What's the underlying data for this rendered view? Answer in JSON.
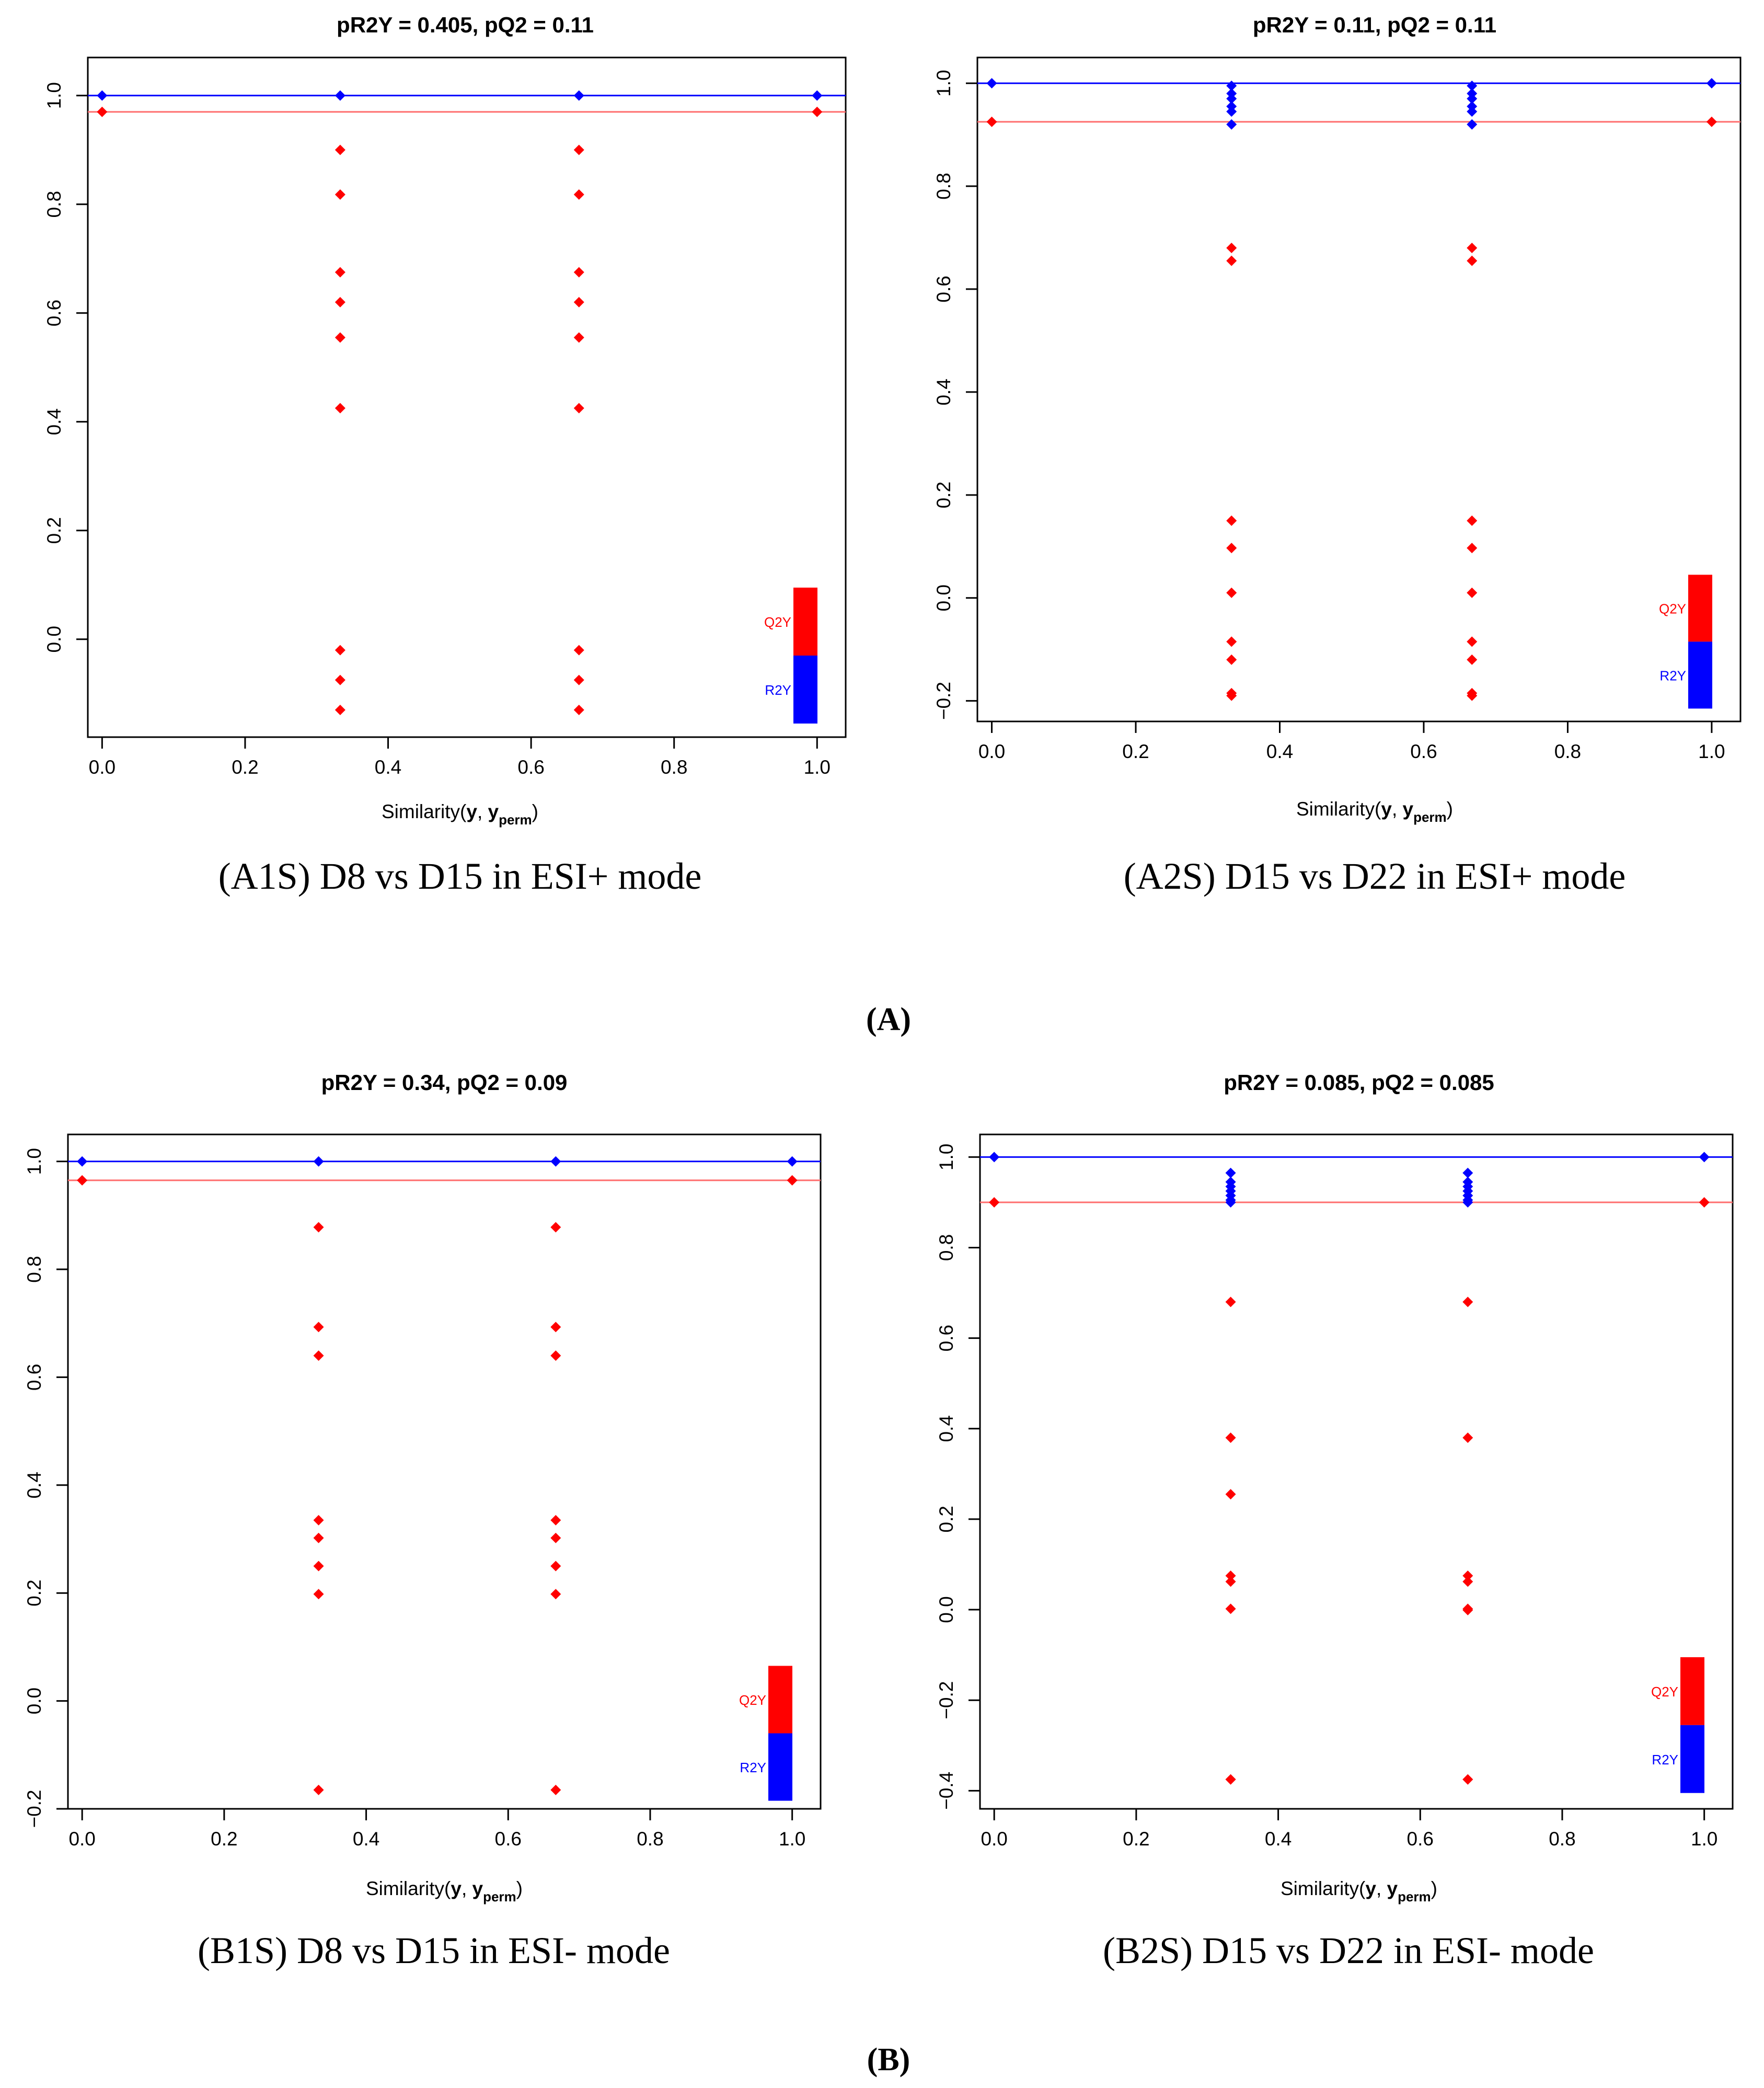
{
  "figure": {
    "panel_labels": [
      "(A)",
      "(B)"
    ]
  },
  "colors": {
    "r2y": "#0000ff",
    "q2y": "#ff0000",
    "q2y_line": "#ff6e6e"
  },
  "chart_data": [
    {
      "type": "scatter",
      "title": "pR2Y = 0.405, pQ2 = 0.11",
      "caption": "(A1S) D8 vs D15 in ESI+ mode",
      "xlabel_parts": [
        "Similarity(",
        "y",
        ", ",
        "y",
        "perm",
        ")"
      ],
      "xlim": [
        -0.02,
        1.04
      ],
      "ylim": [
        -0.18,
        1.07
      ],
      "xticks": [
        "0.0",
        "0.2",
        "0.4",
        "0.6",
        "0.8",
        "1.0"
      ],
      "yticks": [
        "0.0",
        "0.2",
        "0.4",
        "0.6",
        "0.8",
        "1.0"
      ],
      "legend": [
        "Q2Y",
        "R2Y"
      ],
      "legend_extent": [
        -0.155,
        -0.03,
        0.095
      ],
      "r2y_line": 1.0,
      "q2y_line": 0.97,
      "series": [
        {
          "name": "R2Y",
          "x": [
            0.0,
            0.333,
            0.667,
            1.0
          ],
          "y": [
            1.0,
            1.0,
            1.0,
            1.0
          ]
        },
        {
          "name": "Q2Y",
          "x": [
            0.0,
            0.333,
            0.333,
            0.333,
            0.333,
            0.333,
            0.333,
            0.333,
            0.333,
            0.333,
            0.667,
            0.667,
            0.667,
            0.667,
            0.667,
            0.667,
            0.667,
            0.667,
            0.667,
            1.0
          ],
          "y": [
            0.97,
            0.9,
            0.818,
            0.675,
            0.62,
            0.555,
            0.425,
            -0.02,
            -0.075,
            -0.13,
            0.9,
            0.818,
            0.675,
            0.62,
            0.555,
            0.425,
            -0.02,
            -0.075,
            -0.13,
            0.97
          ]
        }
      ]
    },
    {
      "type": "scatter",
      "title": "pR2Y = 0.11, pQ2 = 0.11",
      "caption": "(A2S) D15 vs D22 in ESI+ mode",
      "xlabel_parts": [
        "Similarity(",
        "y",
        ", ",
        "y",
        "perm",
        ")"
      ],
      "xlim": [
        -0.02,
        1.04
      ],
      "ylim": [
        -0.24,
        1.05
      ],
      "xticks": [
        "0.0",
        "0.2",
        "0.4",
        "0.6",
        "0.8",
        "1.0"
      ],
      "yticks": [
        "−0.2",
        "0.0",
        "0.2",
        "0.4",
        "0.6",
        "0.8",
        "1.0"
      ],
      "legend": [
        "Q2Y",
        "R2Y"
      ],
      "legend_extent": [
        -0.215,
        -0.085,
        0.045
      ],
      "r2y_line": 1.0,
      "q2y_line": 0.925,
      "series": [
        {
          "name": "R2Y",
          "x": [
            0.0,
            0.333,
            0.333,
            0.333,
            0.333,
            0.333,
            0.333,
            0.667,
            0.667,
            0.667,
            0.667,
            0.667,
            0.667,
            1.0
          ],
          "y": [
            1.0,
            0.995,
            0.98,
            0.97,
            0.955,
            0.945,
            0.92,
            0.995,
            0.98,
            0.97,
            0.955,
            0.945,
            0.92,
            1.0
          ]
        },
        {
          "name": "Q2Y",
          "x": [
            0.0,
            0.333,
            0.333,
            0.333,
            0.333,
            0.333,
            0.333,
            0.333,
            0.333,
            0.333,
            0.667,
            0.667,
            0.667,
            0.667,
            0.667,
            0.667,
            0.667,
            0.667,
            0.667,
            1.0
          ],
          "y": [
            0.925,
            0.68,
            0.655,
            0.15,
            0.097,
            0.01,
            -0.085,
            -0.12,
            -0.185,
            -0.19,
            0.68,
            0.655,
            0.15,
            0.097,
            0.01,
            -0.085,
            -0.12,
            -0.185,
            -0.19,
            0.925
          ]
        }
      ]
    },
    {
      "type": "scatter",
      "title": "pR2Y = 0.34, pQ2 = 0.09",
      "caption": "(B1S) D8 vs D15 in ESI- mode",
      "xlabel_parts": [
        "Similarity(",
        "y",
        ", ",
        "y",
        "perm",
        ")"
      ],
      "xlim": [
        -0.02,
        1.04
      ],
      "ylim": [
        -0.2,
        1.05
      ],
      "xticks": [
        "0.0",
        "0.2",
        "0.4",
        "0.6",
        "0.8",
        "1.0"
      ],
      "yticks": [
        "−0.2",
        "0.0",
        "0.2",
        "0.4",
        "0.6",
        "0.8",
        "1.0"
      ],
      "legend": [
        "Q2Y",
        "R2Y"
      ],
      "legend_extent": [
        -0.185,
        -0.06,
        0.065
      ],
      "r2y_line": 1.0,
      "q2y_line": 0.965,
      "series": [
        {
          "name": "R2Y",
          "x": [
            0.0,
            0.333,
            0.667,
            1.0
          ],
          "y": [
            1.0,
            1.0,
            1.0,
            1.0
          ]
        },
        {
          "name": "Q2Y",
          "x": [
            0.0,
            0.333,
            0.333,
            0.333,
            0.333,
            0.333,
            0.333,
            0.333,
            0.333,
            0.667,
            0.667,
            0.667,
            0.667,
            0.667,
            0.667,
            0.667,
            0.667,
            1.0
          ],
          "y": [
            0.965,
            0.878,
            0.693,
            0.64,
            0.335,
            0.302,
            0.25,
            0.198,
            -0.165,
            0.878,
            0.693,
            0.64,
            0.335,
            0.302,
            0.25,
            0.198,
            -0.165,
            0.965
          ]
        }
      ]
    },
    {
      "type": "scatter",
      "title": "pR2Y = 0.085, pQ2 = 0.085",
      "caption": "(B2S) D15 vs D22 in ESI- mode",
      "xlabel_parts": [
        "Similarity(",
        "y",
        ", ",
        "y",
        "perm",
        ")"
      ],
      "xlim": [
        -0.02,
        1.04
      ],
      "ylim": [
        -0.44,
        1.05
      ],
      "xticks": [
        "0.0",
        "0.2",
        "0.4",
        "0.6",
        "0.8",
        "1.0"
      ],
      "yticks": [
        "−0.4",
        "−0.2",
        "0.0",
        "0.2",
        "0.4",
        "0.6",
        "0.8",
        "1.0"
      ],
      "legend": [
        "Q2Y",
        "R2Y"
      ],
      "legend_extent": [
        -0.405,
        -0.255,
        -0.105
      ],
      "r2y_line": 1.0,
      "q2y_line": 0.9,
      "series": [
        {
          "name": "R2Y",
          "x": [
            0.0,
            0.333,
            0.333,
            0.333,
            0.333,
            0.333,
            0.333,
            0.333,
            0.667,
            0.667,
            0.667,
            0.667,
            0.667,
            0.667,
            0.667,
            1.0
          ],
          "y": [
            1.0,
            0.965,
            0.945,
            0.935,
            0.925,
            0.915,
            0.905,
            0.9,
            0.965,
            0.945,
            0.935,
            0.925,
            0.915,
            0.905,
            0.9,
            1.0
          ]
        },
        {
          "name": "Q2Y",
          "x": [
            0.0,
            0.333,
            0.333,
            0.333,
            0.333,
            0.333,
            0.333,
            0.333,
            0.333,
            0.667,
            0.667,
            0.667,
            0.667,
            0.667,
            0.667,
            0.667,
            0.667,
            1.0
          ],
          "y": [
            0.9,
            0.68,
            0.38,
            0.255,
            0.075,
            0.062,
            0.002,
            -0.375,
            -0.375,
            0.68,
            0.38,
            0.075,
            0.062,
            0.002,
            -0.001,
            -0.375,
            -0.375,
            0.9
          ]
        }
      ]
    }
  ]
}
